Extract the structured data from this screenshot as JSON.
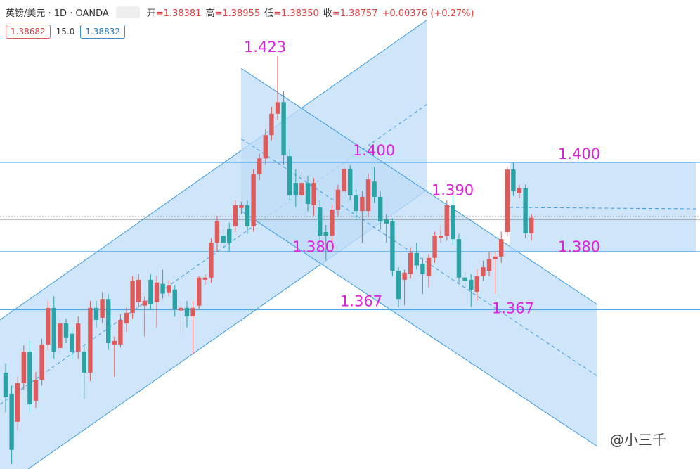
{
  "chart_data": {
    "type": "candlestick",
    "title": "英镑/美元 · 1D · OANDA",
    "legend": [
      {
        "label": "开",
        "value": "=1.38381"
      },
      {
        "label": "高",
        "value": "=1.38955"
      },
      {
        "label": "低",
        "value": "=1.38350"
      },
      {
        "label": "收",
        "value": "=1.38757"
      },
      {
        "label": "",
        "value": "+0.00376 (+0.27%)"
      }
    ],
    "price_boxes": [
      "1.38682",
      "15.0",
      "1.38832"
    ],
    "watermark": "@小三千",
    "up_color": "#e05a5a",
    "down_color": "#2aa3a6",
    "ylim": [
      1.3313,
      1.4364
    ],
    "open": [
      1.3529,
      1.3482,
      1.3419,
      1.3506,
      1.3576,
      1.3466,
      1.3513,
      1.3592,
      1.3674,
      1.3584,
      1.3639,
      1.3616,
      1.3576,
      1.3576,
      1.3529,
      1.3674,
      1.3652,
      1.3694,
      1.3592,
      1.3592,
      1.3639,
      1.3663,
      1.3687,
      1.3679,
      1.3737,
      1.3687,
      1.3728,
      1.3709,
      1.3715,
      1.3668,
      1.3674,
      1.3655,
      1.3679,
      1.3737,
      1.3742,
      1.382,
      1.3836,
      1.3852,
      1.3857,
      1.3898,
      1.3904,
      1.3857,
      1.3973,
      1.4009,
      1.4061,
      1.4109,
      1.4135,
      1.4014,
      1.3954,
      1.3926,
      1.3954,
      1.3904,
      1.3899,
      1.3844,
      1.3836,
      1.3894,
      1.3935,
      1.3986,
      1.3926,
      1.3891,
      1.3891,
      1.3957,
      1.3923,
      1.3872,
      1.3868,
      1.3757,
      1.3737,
      1.375,
      1.3797,
      1.3773,
      1.3746,
      1.3786,
      1.3831,
      1.3836,
      1.3904,
      1.3828,
      1.3742,
      1.3737,
      1.371,
      1.3745,
      1.3757,
      1.3784,
      1.3789,
      1.3844,
      1.3984,
      1.3931,
      1.3942,
      1.3841
    ],
    "high": [
      1.355,
      1.35,
      1.352,
      1.359,
      1.36,
      1.353,
      1.3605,
      1.369,
      1.37,
      1.3655,
      1.365,
      1.363,
      1.3655,
      1.359,
      1.369,
      1.369,
      1.371,
      1.3705,
      1.361,
      1.366,
      1.3675,
      1.3745,
      1.375,
      1.37,
      1.375,
      1.3745,
      1.376,
      1.3735,
      1.3725,
      1.369,
      1.369,
      1.369,
      1.3745,
      1.375,
      1.383,
      1.388,
      1.385,
      1.3865,
      1.3915,
      1.3912,
      1.3915,
      1.3985,
      1.402,
      1.4075,
      1.4125,
      1.4238,
      1.416,
      1.403,
      1.3985,
      1.398,
      1.397,
      1.3965,
      1.3915,
      1.386,
      1.3905,
      1.395,
      1.3995,
      1.3995,
      1.394,
      1.3935,
      1.3975,
      1.399,
      1.3935,
      1.3885,
      1.3875,
      1.3765,
      1.376,
      1.381,
      1.382,
      1.3785,
      1.3795,
      1.3845,
      1.386,
      1.3915,
      1.3925,
      1.384,
      1.3755,
      1.375,
      1.376,
      1.378,
      1.38,
      1.38,
      1.3845,
      1.399,
      1.4,
      1.395,
      1.395,
      1.3885
    ],
    "low": [
      1.344,
      1.3324,
      1.34,
      1.349,
      1.344,
      1.345,
      1.35,
      1.358,
      1.356,
      1.357,
      1.3595,
      1.356,
      1.356,
      1.347,
      1.351,
      1.363,
      1.364,
      1.358,
      1.352,
      1.3585,
      1.362,
      1.365,
      1.3675,
      1.361,
      1.367,
      1.363,
      1.3695,
      1.37,
      1.3655,
      1.362,
      1.363,
      1.357,
      1.367,
      1.3725,
      1.373,
      1.38,
      1.381,
      1.38,
      1.3845,
      1.3885,
      1.384,
      1.3845,
      1.396,
      1.3995,
      1.405,
      1.4095,
      1.3995,
      1.3915,
      1.39,
      1.391,
      1.389,
      1.388,
      1.38,
      1.378,
      1.381,
      1.388,
      1.392,
      1.3915,
      1.387,
      1.382,
      1.388,
      1.391,
      1.385,
      1.382,
      1.3745,
      1.3675,
      1.368,
      1.374,
      1.376,
      1.3705,
      1.372,
      1.3775,
      1.382,
      1.3825,
      1.3815,
      1.373,
      1.372,
      1.3676,
      1.369,
      1.3735,
      1.3745,
      1.3705,
      1.3775,
      1.3835,
      1.3925,
      1.392,
      1.383,
      1.3825
    ],
    "close": [
      1.3474,
      1.3356,
      1.3506,
      1.3576,
      1.3458,
      1.3513,
      1.3592,
      1.3674,
      1.3576,
      1.3639,
      1.3608,
      1.3576,
      1.3639,
      1.3529,
      1.3674,
      1.3647,
      1.3694,
      1.3595,
      1.36,
      1.3647,
      1.3663,
      1.3734,
      1.3737,
      1.369,
      1.3683,
      1.3731,
      1.3706,
      1.3724,
      1.3671,
      1.3674,
      1.3655,
      1.3674,
      1.3742,
      1.3742,
      1.382,
      1.3868,
      1.382,
      1.382,
      1.3904,
      1.3904,
      1.3857,
      1.3973,
      1.4009,
      1.4061,
      1.4109,
      1.4135,
      1.4017,
      1.3926,
      1.3926,
      1.3954,
      1.3907,
      1.3954,
      1.3836,
      1.3836,
      1.3894,
      1.3939,
      1.3986,
      1.3926,
      1.3891,
      1.3923,
      1.3962,
      1.3923,
      1.3868,
      1.3863,
      1.3757,
      1.3694,
      1.3753,
      1.3797,
      1.3769,
      1.375,
      1.3786,
      1.3836,
      1.3836,
      1.3904,
      1.3828,
      1.3742,
      1.3734,
      1.3715,
      1.3745,
      1.3765,
      1.3784,
      1.3789,
      1.3828,
      1.3984,
      1.3935,
      1.3942,
      1.3841,
      1.3876
    ],
    "annotations": [
      {
        "value": 1.423,
        "label": "1.423"
      },
      {
        "value": 1.4,
        "label": "1.400"
      },
      {
        "value": 1.39,
        "label": "1.390"
      },
      {
        "value": 1.38,
        "label": "1.380"
      },
      {
        "value": 1.367,
        "label": "1.367"
      },
      {
        "value": 1.367,
        "label": "1.367"
      },
      {
        "value": 1.4,
        "label": "1.400"
      },
      {
        "value": 1.38,
        "label": "1.380"
      }
    ]
  }
}
